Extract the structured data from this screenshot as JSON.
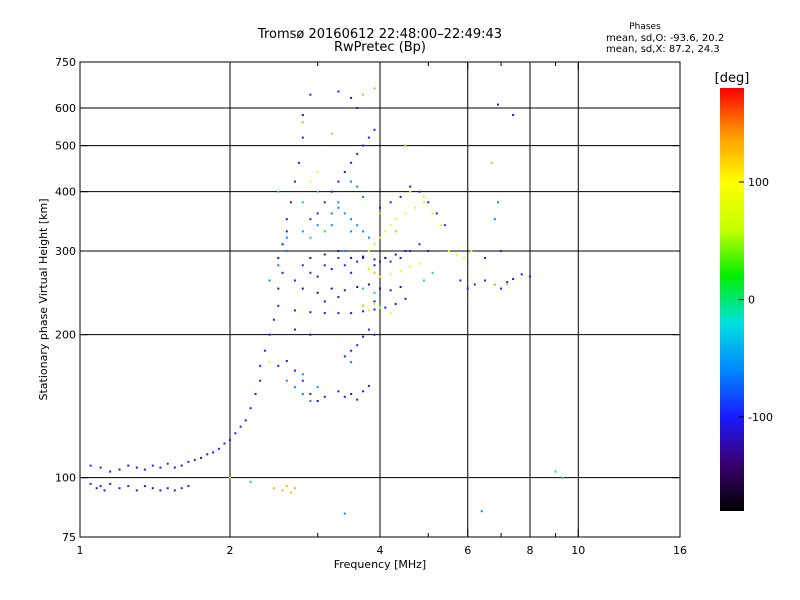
{
  "header": {
    "title_line1": "Tromsø 20160612 22:48:00–22:49:43",
    "title_line2": "RwPretec (Bp)",
    "stats_heading": "Phases",
    "stats_o": "mean, sd,O: -93.6, 20.2",
    "stats_x": "mean, sd,X:  87.2, 24.3"
  },
  "chart_data": {
    "type": "scatter",
    "xlabel": "Frequency [MHz]",
    "ylabel": "Stationary phase Virtual Height [km]",
    "xscale": "log",
    "yscale": "log",
    "xlim": [
      1,
      16
    ],
    "ylim": [
      75,
      750
    ],
    "xticks": [
      1,
      2,
      4,
      6,
      8,
      10,
      16
    ],
    "xtick_labels": [
      "1",
      "2",
      "4",
      "6",
      "8",
      "10",
      "16"
    ],
    "xminor": [
      3,
      5,
      7,
      9
    ],
    "yticks": [
      75,
      100,
      200,
      300,
      400,
      500,
      600,
      750
    ],
    "ytick_labels": [
      "75",
      "100",
      "200",
      "300",
      "400",
      "500",
      "600",
      "750"
    ],
    "grid_x": [
      2,
      4,
      6,
      8,
      10
    ],
    "grid_y": [
      100,
      200,
      300,
      400,
      500,
      600
    ],
    "colorbar": {
      "label": "[deg]",
      "range": [
        -180,
        180
      ],
      "ticks": [
        -100,
        0,
        100
      ],
      "tick_labels": [
        "-100",
        "0",
        "100"
      ],
      "colors": [
        "#000000",
        "#3a0070",
        "#1a1aff",
        "#0088ff",
        "#00e0e0",
        "#00ee00",
        "#c8ff00",
        "#ffff00",
        "#ff9900",
        "#ff0000"
      ]
    },
    "series": [
      {
        "phase": -100,
        "points": [
          [
            1.05,
            97
          ],
          [
            1.08,
            95
          ],
          [
            1.1,
            96
          ],
          [
            1.12,
            94
          ],
          [
            1.15,
            97
          ],
          [
            1.2,
            95
          ],
          [
            1.25,
            96
          ],
          [
            1.3,
            94
          ],
          [
            1.35,
            96
          ],
          [
            1.4,
            95
          ],
          [
            1.45,
            94
          ],
          [
            1.5,
            95
          ],
          [
            1.55,
            94
          ],
          [
            1.6,
            95
          ],
          [
            1.65,
            96
          ],
          [
            1.05,
            106
          ],
          [
            1.1,
            105
          ],
          [
            1.15,
            103
          ],
          [
            1.2,
            104
          ],
          [
            1.25,
            106
          ],
          [
            1.3,
            105
          ],
          [
            1.35,
            104
          ],
          [
            1.4,
            106
          ],
          [
            1.45,
            105
          ],
          [
            1.5,
            107
          ],
          [
            1.55,
            105
          ],
          [
            1.6,
            106
          ],
          [
            1.65,
            108
          ],
          [
            1.7,
            109
          ],
          [
            1.75,
            110
          ],
          [
            1.8,
            112
          ],
          [
            1.85,
            113
          ],
          [
            1.9,
            115
          ],
          [
            1.95,
            118
          ],
          [
            2.0,
            120
          ],
          [
            2.05,
            124
          ],
          [
            2.1,
            128
          ],
          [
            2.15,
            132
          ],
          [
            2.2,
            140
          ],
          [
            2.25,
            150
          ],
          [
            2.3,
            160
          ],
          [
            2.3,
            172
          ],
          [
            2.35,
            185
          ],
          [
            2.4,
            200
          ],
          [
            2.45,
            215
          ],
          [
            2.5,
            230
          ],
          [
            2.5,
            250
          ],
          [
            2.55,
            270
          ],
          [
            2.5,
            290
          ],
          [
            2.55,
            310
          ],
          [
            2.6,
            330
          ],
          [
            2.6,
            350
          ],
          [
            2.65,
            380
          ],
          [
            2.7,
            420
          ],
          [
            2.75,
            460
          ],
          [
            2.8,
            520
          ],
          [
            2.8,
            580
          ],
          [
            2.9,
            640
          ],
          [
            2.7,
            260
          ],
          [
            2.8,
            280
          ],
          [
            2.9,
            270
          ],
          [
            3.0,
            265
          ],
          [
            3.1,
            280
          ],
          [
            3.2,
            275
          ],
          [
            3.3,
            290
          ],
          [
            3.4,
            280
          ],
          [
            3.5,
            270
          ],
          [
            3.6,
            285
          ],
          [
            3.7,
            290
          ],
          [
            3.8,
            275
          ],
          [
            3.9,
            280
          ],
          [
            4.0,
            285
          ],
          [
            4.1,
            290
          ],
          [
            4.2,
            285
          ],
          [
            4.4,
            290
          ],
          [
            4.6,
            300
          ],
          [
            4.8,
            310
          ],
          [
            5.0,
            300
          ],
          [
            2.7,
            225
          ],
          [
            2.9,
            223
          ],
          [
            3.1,
            222
          ],
          [
            3.3,
            222
          ],
          [
            3.5,
            222
          ],
          [
            3.7,
            224
          ],
          [
            3.9,
            226
          ],
          [
            4.1,
            228
          ],
          [
            4.3,
            232
          ],
          [
            4.5,
            238
          ],
          [
            2.5,
            172
          ],
          [
            2.6,
            176
          ],
          [
            2.7,
            168
          ],
          [
            2.8,
            160
          ],
          [
            2.9,
            150
          ],
          [
            3.0,
            145
          ],
          [
            3.1,
            148
          ],
          [
            3.3,
            152
          ],
          [
            3.4,
            148
          ],
          [
            3.5,
            150
          ],
          [
            3.6,
            146
          ],
          [
            3.7,
            152
          ],
          [
            3.8,
            156
          ],
          [
            3.4,
            180
          ],
          [
            3.5,
            185
          ],
          [
            3.6,
            190
          ],
          [
            3.7,
            198
          ],
          [
            3.8,
            205
          ],
          [
            3.9,
            200
          ],
          [
            2.9,
            350
          ],
          [
            3.0,
            360
          ],
          [
            3.1,
            380
          ],
          [
            3.2,
            400
          ],
          [
            3.3,
            420
          ],
          [
            3.4,
            440
          ],
          [
            3.5,
            460
          ],
          [
            3.6,
            480
          ],
          [
            3.7,
            500
          ],
          [
            3.8,
            520
          ],
          [
            3.9,
            540
          ],
          [
            3.6,
            600
          ],
          [
            3.5,
            630
          ],
          [
            3.3,
            650
          ],
          [
            4.0,
            370
          ],
          [
            4.2,
            380
          ],
          [
            4.4,
            390
          ],
          [
            4.6,
            410
          ],
          [
            4.8,
            400
          ],
          [
            5.0,
            380
          ],
          [
            5.2,
            360
          ],
          [
            5.4,
            340
          ],
          [
            5.8,
            260
          ],
          [
            6.0,
            250
          ],
          [
            6.2,
            255
          ],
          [
            6.5,
            260
          ],
          [
            6.8,
            255
          ],
          [
            7.0,
            250
          ],
          [
            7.2,
            258
          ],
          [
            7.4,
            262
          ],
          [
            7.7,
            268
          ],
          [
            8.0,
            265
          ],
          [
            6.9,
            610
          ],
          [
            7.4,
            580
          ],
          [
            6.5,
            290
          ],
          [
            7.0,
            300
          ]
        ]
      },
      {
        "phase": -60,
        "points": [
          [
            2.6,
            320
          ],
          [
            2.8,
            330
          ],
          [
            3.0,
            340
          ],
          [
            3.2,
            360
          ],
          [
            3.3,
            370
          ],
          [
            3.4,
            360
          ],
          [
            3.5,
            350
          ],
          [
            3.6,
            340
          ],
          [
            3.7,
            330
          ],
          [
            3.8,
            320
          ],
          [
            3.9,
            310
          ],
          [
            3.7,
            390
          ],
          [
            3.6,
            410
          ],
          [
            3.5,
            420
          ],
          [
            3.3,
            380
          ],
          [
            3.2,
            340
          ],
          [
            3.4,
            300
          ],
          [
            3.5,
            330
          ],
          [
            2.6,
            160
          ],
          [
            2.7,
            155
          ],
          [
            2.8,
            150
          ],
          [
            2.9,
            145
          ],
          [
            3.0,
            155
          ],
          [
            2.8,
            165
          ],
          [
            3.5,
            175
          ],
          [
            2.4,
            260
          ],
          [
            2.5,
            280
          ],
          [
            2.6,
            300
          ],
          [
            6.9,
            380
          ],
          [
            6.8,
            350
          ],
          [
            6.4,
            85
          ],
          [
            3.4,
            84
          ]
        ]
      },
      {
        "phase": -120,
        "points": [
          [
            2.9,
            290
          ],
          [
            3.1,
            295
          ],
          [
            3.3,
            300
          ],
          [
            3.5,
            290
          ],
          [
            3.7,
            292
          ],
          [
            3.9,
            288
          ],
          [
            4.1,
            290
          ],
          [
            4.3,
            295
          ],
          [
            4.5,
            300
          ],
          [
            2.8,
            250
          ],
          [
            3.0,
            245
          ],
          [
            3.2,
            250
          ],
          [
            3.4,
            248
          ],
          [
            3.6,
            252
          ],
          [
            3.8,
            255
          ],
          [
            4.0,
            250
          ],
          [
            4.2,
            248
          ],
          [
            4.4,
            252
          ],
          [
            2.7,
            205
          ],
          [
            2.9,
            200
          ],
          [
            3.1,
            235
          ],
          [
            3.3,
            240
          ],
          [
            3.7,
            230
          ],
          [
            3.9,
            235
          ]
        ]
      },
      {
        "phase": 0,
        "points": [
          [
            2.9,
            320
          ],
          [
            3.1,
            330
          ],
          [
            2.8,
            380
          ],
          [
            3.0,
            400
          ],
          [
            3.7,
            250
          ],
          [
            3.9,
            245
          ],
          [
            4.0,
            230
          ],
          [
            2.5,
            400
          ],
          [
            2.2,
            98
          ],
          [
            4.9,
            260
          ],
          [
            5.1,
            270
          ],
          [
            9.3,
            100
          ],
          [
            9.0,
            103
          ]
        ]
      },
      {
        "phase": 80,
        "points": [
          [
            3.8,
            300
          ],
          [
            3.9,
            310
          ],
          [
            4.0,
            320
          ],
          [
            4.1,
            330
          ],
          [
            4.2,
            340
          ],
          [
            4.3,
            350
          ],
          [
            4.5,
            360
          ],
          [
            4.7,
            370
          ],
          [
            4.9,
            380
          ],
          [
            5.1,
            360
          ],
          [
            5.3,
            340
          ],
          [
            5.5,
            300
          ],
          [
            5.7,
            295
          ],
          [
            5.9,
            290
          ],
          [
            6.1,
            300
          ],
          [
            3.8,
            275
          ],
          [
            3.9,
            270
          ],
          [
            4.0,
            265
          ],
          [
            4.2,
            268
          ],
          [
            4.4,
            272
          ],
          [
            4.6,
            278
          ],
          [
            4.8,
            282
          ],
          [
            3.7,
            230
          ],
          [
            3.8,
            225
          ],
          [
            3.9,
            232
          ],
          [
            4.0,
            228
          ],
          [
            4.2,
            222
          ],
          [
            2.9,
            420
          ],
          [
            3.0,
            440
          ],
          [
            4.6,
            400
          ],
          [
            4.9,
            390
          ],
          [
            2.4,
            175
          ]
        ]
      },
      {
        "phase": 130,
        "points": [
          [
            2.45,
            95
          ],
          [
            2.55,
            94
          ],
          [
            2.6,
            96
          ],
          [
            2.65,
            93
          ],
          [
            2.7,
            95
          ],
          [
            2.0,
            100
          ],
          [
            3.9,
            660
          ],
          [
            3.7,
            640
          ],
          [
            4.0,
            360
          ],
          [
            4.3,
            330
          ],
          [
            2.8,
            560
          ],
          [
            3.2,
            530
          ],
          [
            6.7,
            460
          ],
          [
            6.8,
            255
          ],
          [
            7.2,
            255
          ],
          [
            3.9,
            270
          ],
          [
            4.5,
            500
          ]
        ]
      }
    ]
  }
}
